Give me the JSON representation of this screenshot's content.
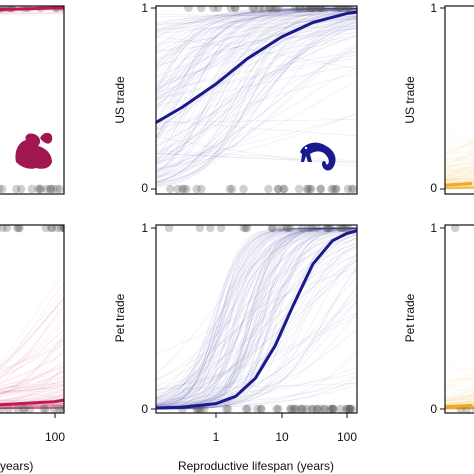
{
  "chart_data": [
    {
      "type": "line",
      "panel": "left-top",
      "ylabel": "",
      "xlabel": "",
      "y_ticks": [],
      "x_ticks": [],
      "xscale": "log",
      "ylim": [
        0,
        1
      ],
      "color": "#c2185b",
      "icon": "squirrel-icon",
      "curve": {
        "x": [
          0.1,
          1,
          10,
          100
        ],
        "y": [
          0.98,
          0.99,
          1.0,
          1.0
        ]
      }
    },
    {
      "type": "line",
      "panel": "center-top",
      "ylabel": "US trade",
      "xlabel": "",
      "y_ticks": [
        "0",
        "1"
      ],
      "x_ticks": [],
      "xscale": "log",
      "xlim": [
        0.1,
        160
      ],
      "ylim": [
        0,
        1
      ],
      "color": "#1a1a8c",
      "icon": "chameleon-icon",
      "curve": {
        "x": [
          0.1,
          0.3,
          1,
          3,
          10,
          30,
          100,
          160
        ],
        "y": [
          0.35,
          0.45,
          0.58,
          0.72,
          0.84,
          0.92,
          0.97,
          0.98
        ]
      }
    },
    {
      "type": "line",
      "panel": "right-top",
      "ylabel": "US trade",
      "xlabel": "",
      "y_ticks": [
        "0",
        "1"
      ],
      "x_ticks": [],
      "xscale": "log",
      "ylim": [
        0,
        1
      ],
      "color": "#f5a623",
      "curve": {
        "x": [
          0.1,
          0.3
        ],
        "y": [
          0.02,
          0.03
        ]
      }
    },
    {
      "type": "line",
      "panel": "left-bottom",
      "ylabel": "",
      "xlabel": "(years)",
      "y_ticks": [],
      "x_ticks": [
        "100"
      ],
      "xscale": "log",
      "ylim": [
        0,
        1
      ],
      "color": "#c2185b",
      "curve": {
        "x": [
          1,
          10,
          100
        ],
        "y": [
          0.02,
          0.04,
          0.1
        ]
      }
    },
    {
      "type": "line",
      "panel": "center-bottom",
      "ylabel": "Pet trade",
      "xlabel": "Reproductive lifespan (years)",
      "y_ticks": [
        "0",
        "1"
      ],
      "x_ticks": [
        "1",
        "10",
        "100"
      ],
      "xscale": "log",
      "xlim": [
        0.1,
        160
      ],
      "ylim": [
        0,
        1
      ],
      "color": "#1a1a8c",
      "curve": {
        "x": [
          0.1,
          0.3,
          1,
          2,
          4,
          8,
          15,
          30,
          60,
          100,
          160
        ],
        "y": [
          0.005,
          0.01,
          0.03,
          0.07,
          0.17,
          0.35,
          0.57,
          0.8,
          0.93,
          0.97,
          0.99
        ]
      }
    },
    {
      "type": "line",
      "panel": "right-bottom",
      "ylabel": "Pet trade",
      "xlabel": "",
      "y_ticks": [
        "0",
        "1"
      ],
      "x_ticks": [],
      "xscale": "log",
      "ylim": [
        0,
        1
      ],
      "color": "#f5a623",
      "curve": {
        "x": [
          0.1,
          0.3
        ],
        "y": [
          0.01,
          0.02
        ]
      }
    }
  ]
}
